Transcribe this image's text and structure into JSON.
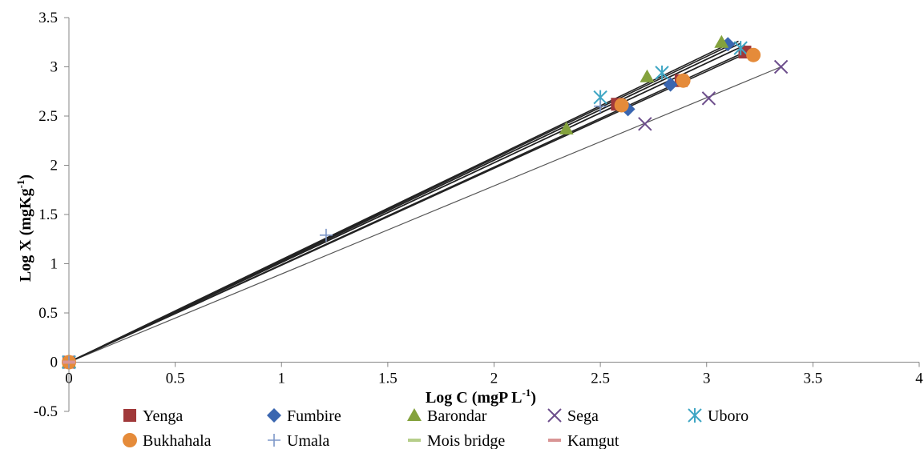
{
  "chart_data": {
    "type": "scatter",
    "title": "",
    "xlabel": "Log C (mgP  L",
    "xlabel_sup": "-1",
    "xlabel_end": ")",
    "ylabel": "Log X (mgKg",
    "ylabel_sup": "-1",
    "ylabel_end": ")",
    "xlim": [
      0,
      4
    ],
    "ylim": [
      -0.5,
      3.5
    ],
    "x_ticks": [
      "0",
      "0.5",
      "1",
      "1.5",
      "2",
      "2.5",
      "3",
      "3.5",
      "4"
    ],
    "y_ticks": [
      "-0.5",
      "0",
      "0.5",
      "1",
      "1.5",
      "2",
      "2.5",
      "3",
      "3.5"
    ],
    "y_tick_values": [
      -0.5,
      0,
      0.5,
      1,
      1.5,
      2,
      2.5,
      3,
      3.5
    ],
    "x_tick_values": [
      0,
      0.5,
      1,
      1.5,
      2,
      2.5,
      3,
      3.5,
      4
    ],
    "grid": false,
    "legend_position": "bottom",
    "series": [
      {
        "name": "Yenga",
        "marker": "square",
        "color": "#A0393A",
        "points": [
          [
            0,
            0
          ],
          [
            2.58,
            2.62
          ],
          [
            2.88,
            2.86
          ],
          [
            3.18,
            3.15
          ]
        ],
        "trendline": [
          [
            0,
            0
          ],
          [
            3.2,
            3.17
          ]
        ]
      },
      {
        "name": "Fumbire",
        "marker": "diamond",
        "color": "#3A66B0",
        "points": [
          [
            0,
            0
          ],
          [
            2.63,
            2.57
          ],
          [
            2.83,
            2.82
          ],
          [
            3.1,
            3.23
          ]
        ],
        "trendline": [
          [
            0,
            0
          ],
          [
            3.12,
            3.2
          ]
        ]
      },
      {
        "name": "Barondar",
        "marker": "triangle",
        "color": "#84A23D",
        "points": [
          [
            0,
            0
          ],
          [
            2.34,
            2.37
          ],
          [
            2.72,
            2.9
          ],
          [
            3.07,
            3.25
          ]
        ],
        "trendline": [
          [
            0,
            0
          ],
          [
            3.12,
            3.25
          ]
        ]
      },
      {
        "name": "Sega",
        "marker": "x",
        "color": "#6D4E8C",
        "points": [
          [
            0,
            0
          ],
          [
            2.71,
            2.42
          ],
          [
            3.01,
            2.68
          ],
          [
            3.35,
            3.0
          ]
        ],
        "trendline": [
          [
            0,
            0
          ],
          [
            3.35,
            3.0
          ]
        ]
      },
      {
        "name": "Uboro",
        "marker": "asterisk",
        "color": "#3FA6C4",
        "points": [
          [
            0,
            0
          ],
          [
            2.5,
            2.69
          ],
          [
            2.79,
            2.94
          ],
          [
            3.16,
            3.19
          ]
        ],
        "trendline": [
          [
            0,
            0
          ],
          [
            3.16,
            3.24
          ]
        ]
      },
      {
        "name": "Bukhahala",
        "marker": "circle",
        "color": "#E58B3A",
        "points": [
          [
            0,
            0
          ],
          [
            2.6,
            2.61
          ],
          [
            2.89,
            2.86
          ],
          [
            3.22,
            3.12
          ]
        ],
        "trendline": [
          [
            0,
            0
          ],
          [
            3.22,
            3.17
          ]
        ]
      },
      {
        "name": "Umala",
        "marker": "plus",
        "color": "#7D97C8",
        "points": [
          [
            0,
            0
          ],
          [
            1.21,
            1.29
          ],
          [
            2.5,
            2.6
          ]
        ],
        "trendline": [
          [
            0,
            0
          ],
          [
            3.15,
            3.26
          ]
        ]
      },
      {
        "name": "Mois bridge",
        "marker": "dash",
        "color": "#B6CE8A",
        "points": [
          [
            0,
            0
          ]
        ],
        "trendline": [
          [
            0,
            0
          ],
          [
            3.18,
            3.22
          ]
        ]
      },
      {
        "name": "Kamgut",
        "marker": "dash",
        "color": "#D99595",
        "points": [
          [
            0,
            0
          ]
        ],
        "trendline": [
          [
            0,
            0
          ],
          [
            3.14,
            3.18
          ]
        ]
      }
    ]
  }
}
